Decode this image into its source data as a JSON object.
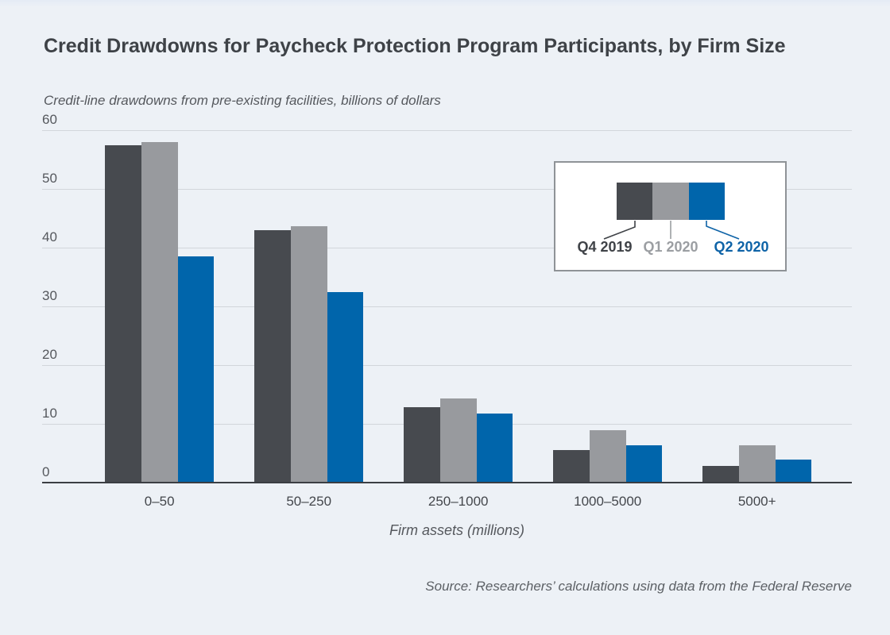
{
  "colors": {
    "background": "#edf1f6",
    "grid": "#d2d6db",
    "axis": "#3b3e43",
    "title": "#3e4247",
    "muted_text": "#55585d",
    "xtick_text": "#44474c",
    "legend_border": "#8f9397",
    "legend_bg": "#ffffff"
  },
  "chart_data": {
    "type": "bar",
    "title": "Credit Drawdowns for Paycheck Protection Program Participants, by Firm Size",
    "units_note": "Credit-line drawdowns from pre-existing facilities, billions of dollars",
    "xlabel": "Firm assets (millions)",
    "ylabel": "Credit-line drawdowns from pre-existing facilities, billions of dollars",
    "categories": [
      "0–50",
      "50–250",
      "250–1000",
      "1000–5000",
      "5000+"
    ],
    "series": [
      {
        "name": "Q4 2019",
        "color": "#474a4f",
        "label_color": "#3f4247",
        "values": [
          57.5,
          43.0,
          12.8,
          5.5,
          2.8
        ]
      },
      {
        "name": "Q1 2020",
        "color": "#989a9e",
        "label_color": "#9b9ea2",
        "values": [
          58.0,
          43.7,
          14.3,
          8.9,
          6.3
        ]
      },
      {
        "name": "Q2 2020",
        "color": "#0065ab",
        "label_color": "#0e63a7",
        "values": [
          38.5,
          32.5,
          11.7,
          6.4,
          3.9
        ]
      }
    ],
    "ylim": [
      0,
      60
    ],
    "yticks": [
      0,
      10,
      20,
      30,
      40,
      50,
      60
    ],
    "grid": true,
    "legend_position": "top-right",
    "source": "Source: Researchers’ calculations using data from the Federal Reserve"
  }
}
